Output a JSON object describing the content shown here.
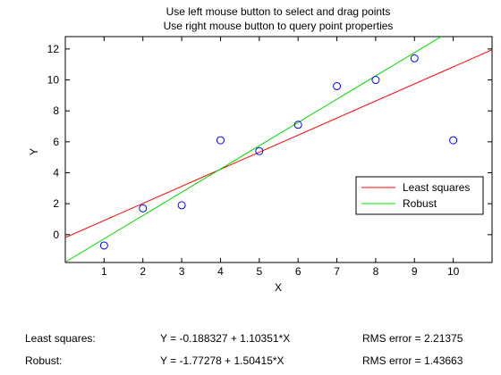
{
  "header": {
    "instruction_drag": "Use left mouse button to select and drag points",
    "instruction_query": "Use right mouse button to query point properties"
  },
  "chart_data": {
    "type": "scatter",
    "title": "",
    "xlabel": "X",
    "ylabel": "Y",
    "xlim": [
      0,
      11
    ],
    "ylim": [
      -1.8,
      12.8
    ],
    "xticks": [
      1,
      2,
      3,
      4,
      5,
      6,
      7,
      8,
      9,
      10
    ],
    "yticks": [
      0,
      2,
      4,
      6,
      8,
      10,
      12
    ],
    "grid": false,
    "points": {
      "x": [
        1,
        2,
        3,
        4,
        5,
        6,
        7,
        8,
        9,
        10
      ],
      "y": [
        -0.7,
        1.7,
        1.9,
        6.1,
        5.4,
        7.1,
        9.6,
        10.0,
        11.4,
        6.1
      ],
      "color": "#0000ff",
      "marker": "circle"
    },
    "fits": [
      {
        "name": "Least squares",
        "intercept": -0.188327,
        "slope": 1.10351,
        "color": "#ff0000"
      },
      {
        "name": "Robust",
        "intercept": -1.77278,
        "slope": 1.50415,
        "color": "#00dd00"
      }
    ],
    "legend_position": "lower-right"
  },
  "stats": {
    "least_squares": {
      "label": "Least squares:",
      "equation": "Y = -0.188327 + 1.10351*X",
      "rms": "RMS error = 2.21375"
    },
    "robust": {
      "label": "Robust:",
      "equation": "Y = -1.77278 + 1.50415*X",
      "rms": "RMS error = 1.43663"
    }
  }
}
